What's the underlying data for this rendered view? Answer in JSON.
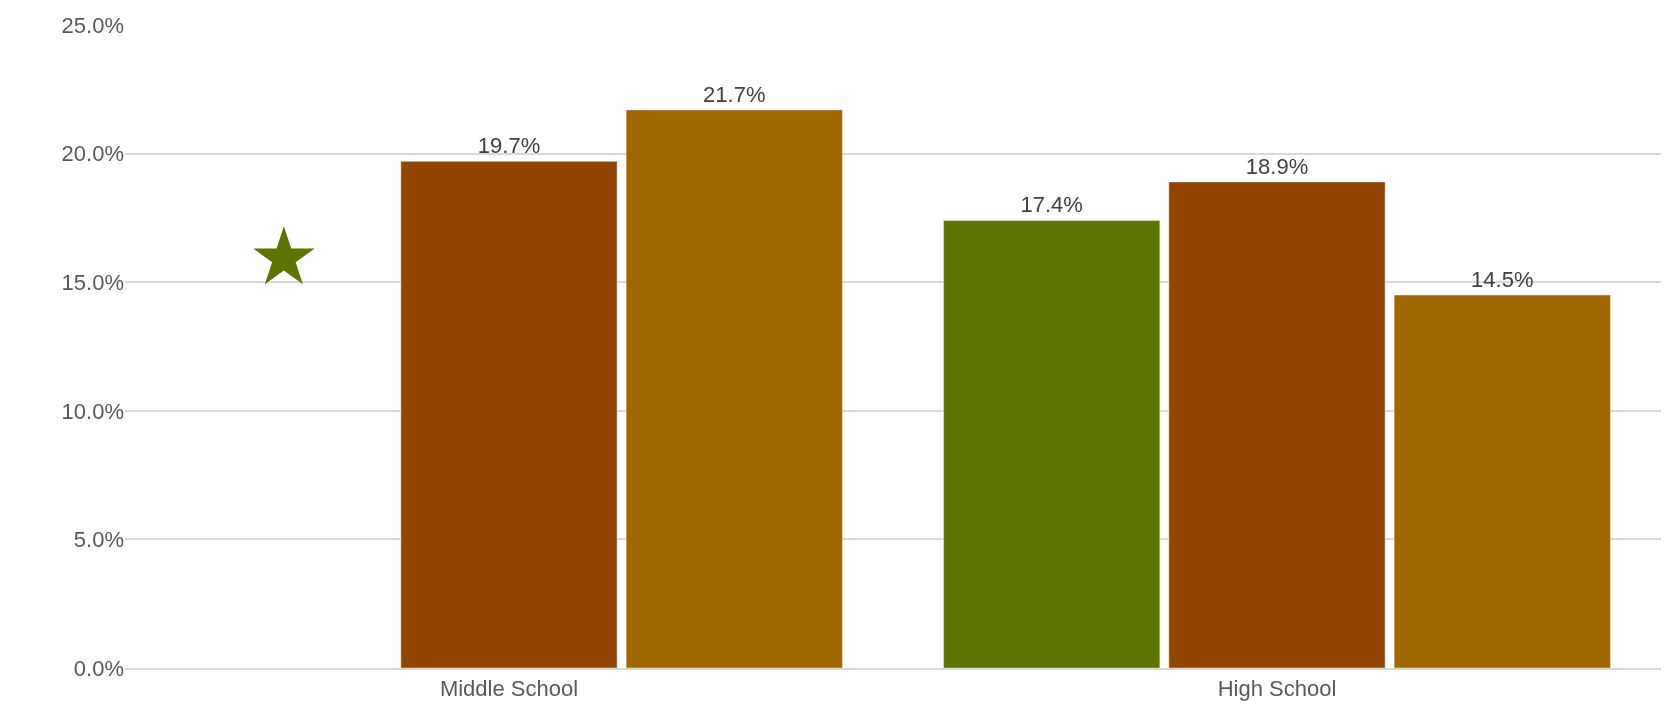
{
  "chart_data": {
    "type": "bar",
    "categories": [
      "Middle School",
      "High School"
    ],
    "series": [
      {
        "color": "#5b7500",
        "values": [
          null,
          17.4
        ],
        "value_labels": [
          null,
          "17.4%"
        ]
      },
      {
        "color": "#934400",
        "values": [
          19.7,
          18.9
        ],
        "value_labels": [
          "19.7%",
          "18.9%"
        ]
      },
      {
        "color": "#a06600",
        "values": [
          21.7,
          14.5
        ],
        "value_labels": [
          "21.7%",
          "14.5%"
        ]
      }
    ],
    "ylim": [
      0,
      25
    ],
    "yticks": [
      {
        "value": 0,
        "label": "0.0%"
      },
      {
        "value": 5,
        "label": "5.0%"
      },
      {
        "value": 10,
        "label": "10.0%"
      },
      {
        "value": 15,
        "label": "15.0%"
      },
      {
        "value": 20,
        "label": "20.0%"
      },
      {
        "value": 25,
        "label": "25.0%"
      }
    ],
    "grid": "y",
    "annotations": [
      "★"
    ]
  }
}
